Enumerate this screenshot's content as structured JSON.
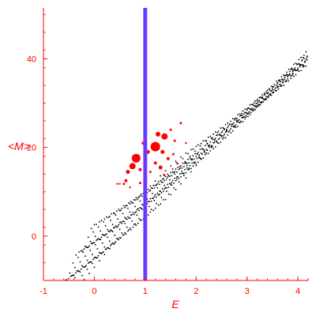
{
  "chart_data": {
    "type": "scatter",
    "title": "",
    "xlabel": "E",
    "ylabel": "<M>",
    "xlim": [
      -1,
      4.2
    ],
    "ylim": [
      -10,
      51.5
    ],
    "xticks": [
      -1,
      0,
      1,
      2,
      3,
      4
    ],
    "yticks": [
      0,
      20,
      40
    ],
    "xtick_labels": [
      "-1",
      "0",
      "1",
      "2",
      "3",
      "4"
    ],
    "ytick_labels": [
      "0",
      "20",
      "40"
    ],
    "grid": false,
    "colors": {
      "axis": "#ff0000",
      "background_points": "#000000",
      "highlight_points": "#ff0000",
      "vertical_line": "#7f3fff"
    },
    "vertical_line": {
      "x": 1.0
    },
    "background_series": {
      "name": "",
      "x_range": [
        -0.9,
        4.2
      ],
      "band_slope": 11.5,
      "band_intercept_min": -4,
      "band_intercept_max": 5,
      "rows": 16,
      "step": 0.1
    },
    "highlight_points": [
      {
        "x": 0.82,
        "y": 17.6,
        "r": 5.5
      },
      {
        "x": 0.75,
        "y": 15.8,
        "r": 4
      },
      {
        "x": 0.66,
        "y": 14.5,
        "r": 2.5
      },
      {
        "x": 0.62,
        "y": 12.5,
        "r": 2
      },
      {
        "x": 0.58,
        "y": 11.8,
        "r": 1.5
      },
      {
        "x": 0.5,
        "y": 11.8,
        "r": 1.2
      },
      {
        "x": 0.45,
        "y": 11.8,
        "r": 1.2
      },
      {
        "x": 0.7,
        "y": 11.0,
        "r": 1.2
      },
      {
        "x": 0.9,
        "y": 12.0,
        "r": 1.5
      },
      {
        "x": 0.9,
        "y": 15.0,
        "r": 2
      },
      {
        "x": 1.2,
        "y": 20.2,
        "r": 6
      },
      {
        "x": 1.38,
        "y": 22.5,
        "r": 4
      },
      {
        "x": 1.34,
        "y": 19.0,
        "r": 2.5
      },
      {
        "x": 1.45,
        "y": 17.5,
        "r": 2
      },
      {
        "x": 1.5,
        "y": 24.0,
        "r": 1.5
      },
      {
        "x": 1.58,
        "y": 21.5,
        "r": 1.5
      },
      {
        "x": 1.7,
        "y": 25.5,
        "r": 1.5
      },
      {
        "x": 1.3,
        "y": 15.5,
        "r": 2.5
      },
      {
        "x": 1.2,
        "y": 16.5,
        "r": 2
      },
      {
        "x": 1.1,
        "y": 14.5,
        "r": 1.5
      },
      {
        "x": 1.05,
        "y": 19.0,
        "r": 2.5
      },
      {
        "x": 1.02,
        "y": 13.0,
        "r": 1.5
      },
      {
        "x": 1.37,
        "y": 13.8,
        "r": 1.5
      },
      {
        "x": 1.55,
        "y": 18.5,
        "r": 1.5
      },
      {
        "x": 1.62,
        "y": 16.5,
        "r": 1.2
      },
      {
        "x": 1.8,
        "y": 21.0,
        "r": 1.2
      },
      {
        "x": 0.96,
        "y": 21.0,
        "r": 2
      },
      {
        "x": 1.25,
        "y": 23.0,
        "r": 3
      }
    ]
  }
}
